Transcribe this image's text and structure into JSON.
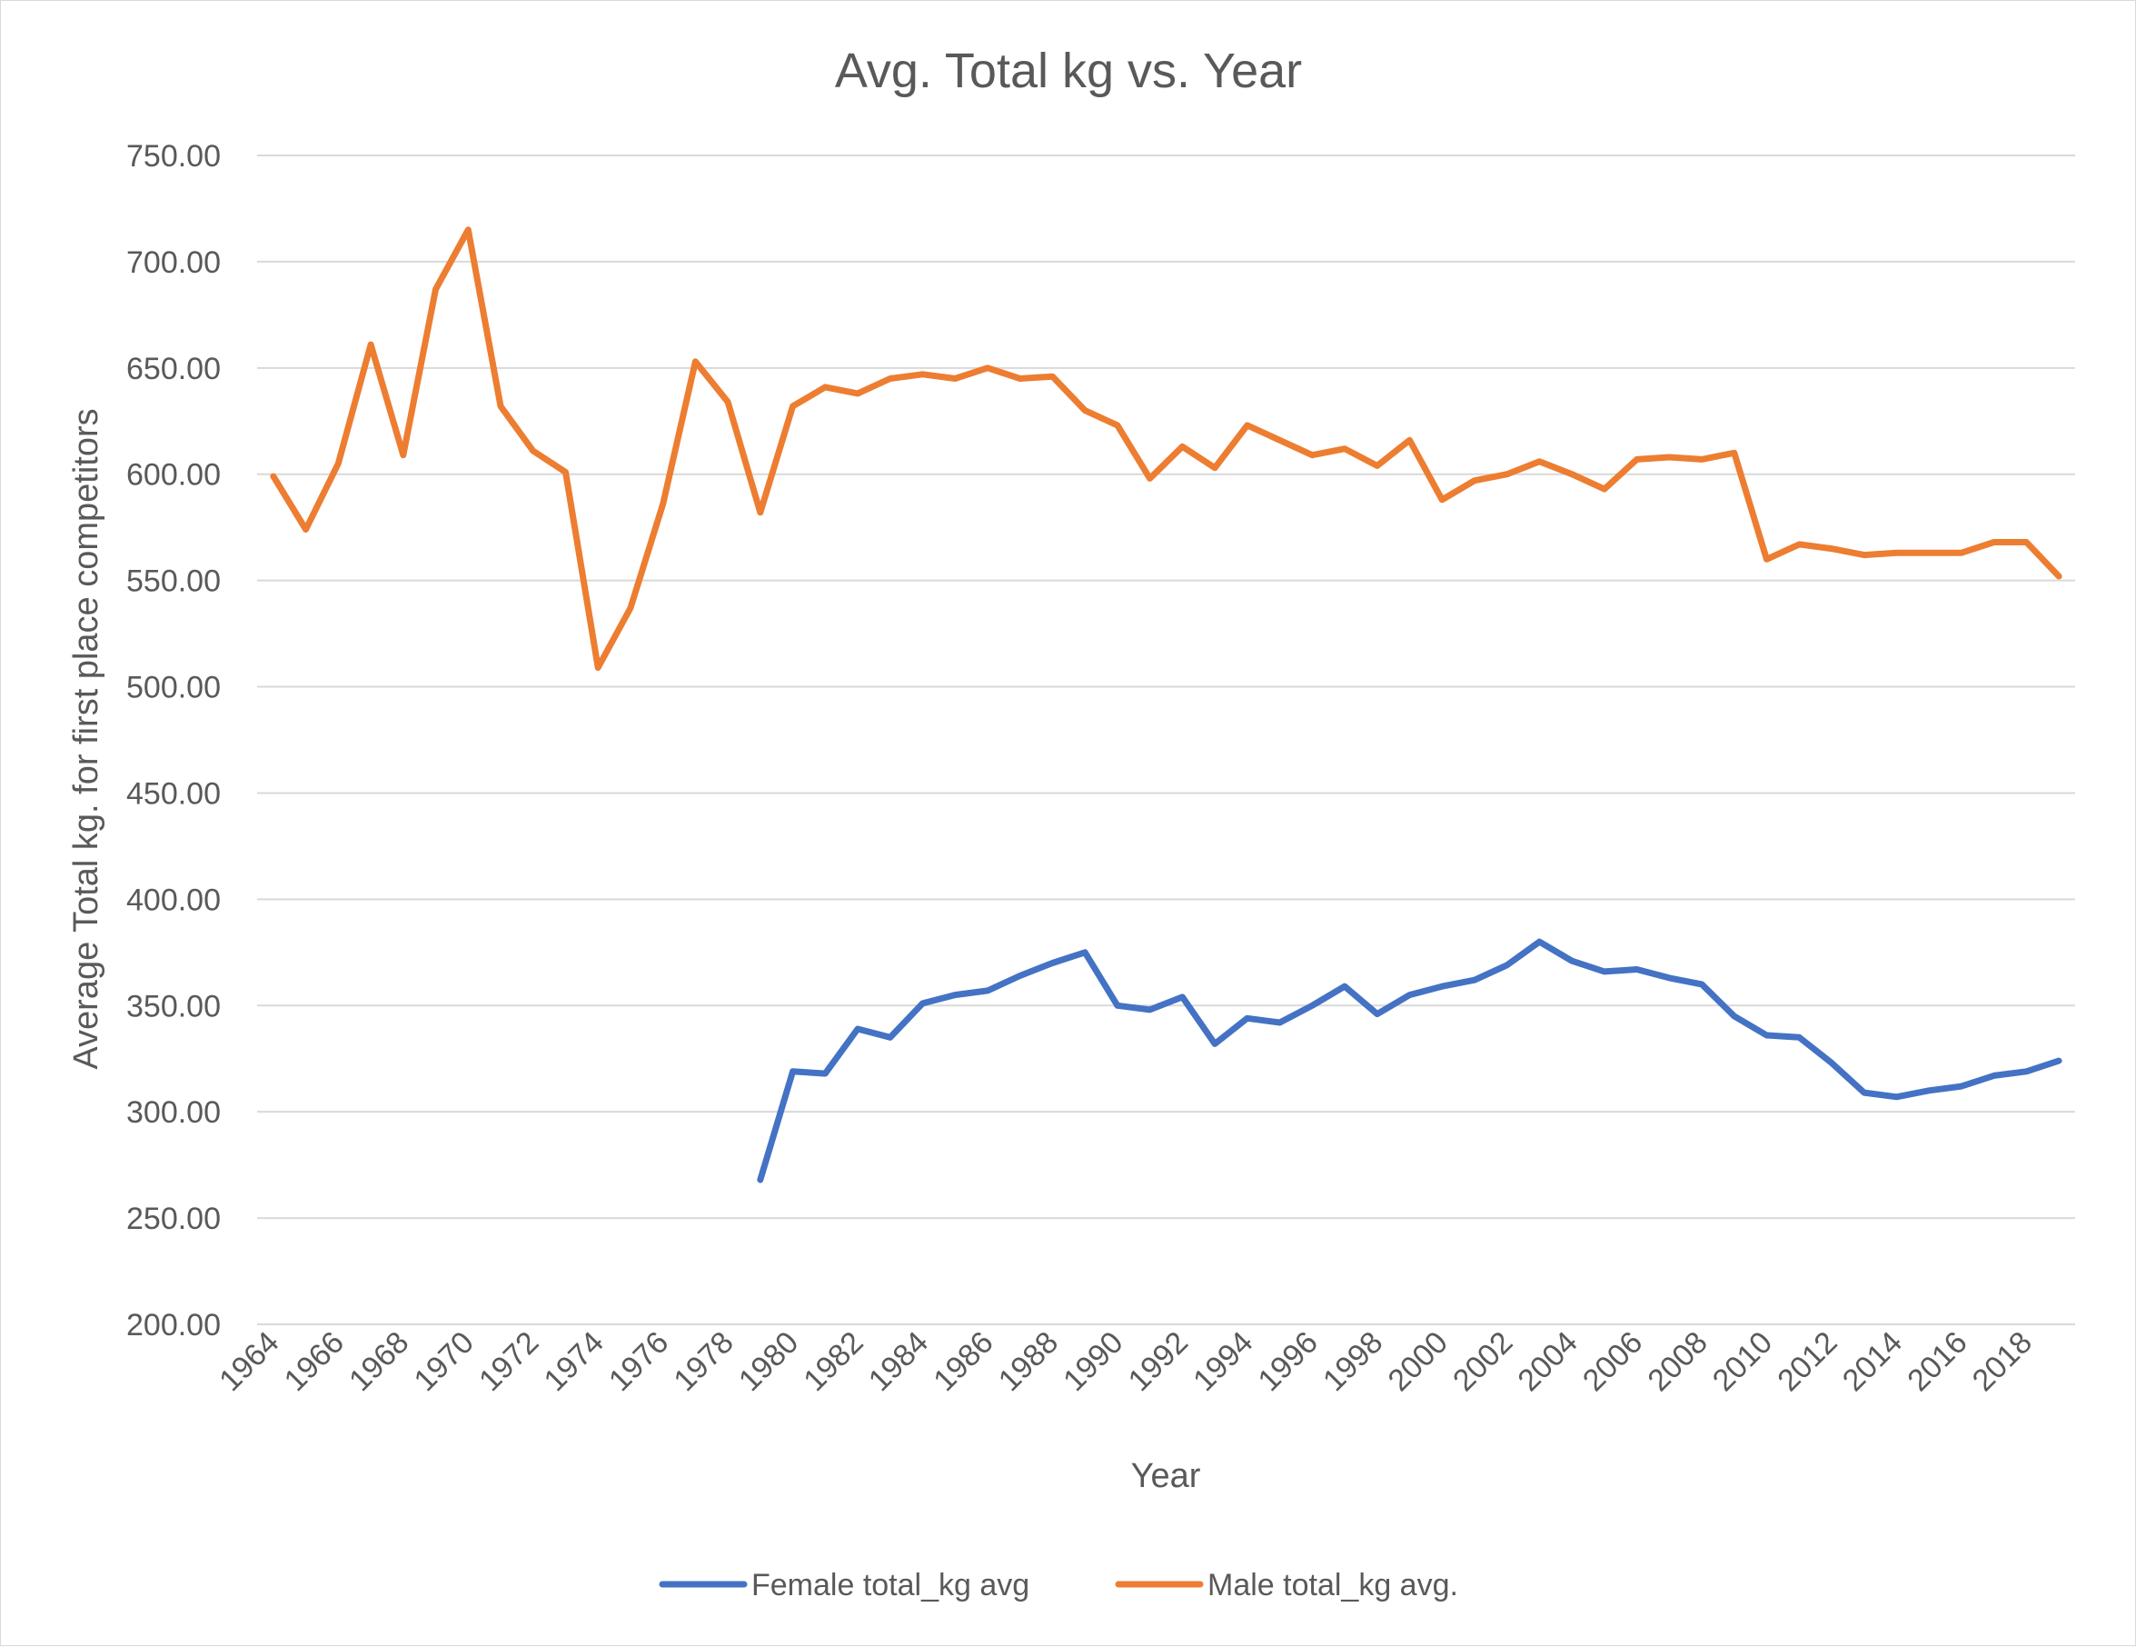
{
  "chart_data": {
    "type": "line",
    "title": "Avg. Total kg vs. Year",
    "xlabel": "Year",
    "ylabel": "Average Total kg. for first place competitors",
    "ylim": [
      200,
      750
    ],
    "ytick_step": 50,
    "ytick_decimals": 2,
    "x_range": [
      1964,
      2019
    ],
    "xtick_labels": [
      "1964",
      "1966",
      "1968",
      "1970",
      "1972",
      "1974",
      "1976",
      "1978",
      "1980",
      "1982",
      "1984",
      "1986",
      "1988",
      "1990",
      "1992",
      "1994",
      "1996",
      "1998",
      "2000",
      "2002",
      "2004",
      "2006",
      "2008",
      "2010",
      "2012",
      "2014",
      "2016",
      "2018"
    ],
    "grid": "horizontal",
    "legend_position": "bottom",
    "series": [
      {
        "name": "Female total_kg avg",
        "color": "#4472C4",
        "x": [
          1979,
          1980,
          1981,
          1982,
          1983,
          1984,
          1985,
          1986,
          1987,
          1988,
          1989,
          1990,
          1991,
          1992,
          1993,
          1994,
          1995,
          1996,
          1997,
          1998,
          1999,
          2000,
          2001,
          2002,
          2003,
          2004,
          2005,
          2006,
          2007,
          2008,
          2009,
          2010,
          2011,
          2012,
          2013,
          2014,
          2015,
          2016,
          2017,
          2018,
          2019
        ],
        "y": [
          268,
          319,
          318,
          339,
          335,
          351,
          355,
          357,
          364,
          370,
          375,
          350,
          348,
          354,
          332,
          344,
          342,
          350,
          359,
          346,
          355,
          359,
          362,
          369,
          380,
          371,
          366,
          367,
          363,
          360,
          345,
          336,
          335,
          323,
          309,
          307,
          310,
          312,
          317,
          319,
          324
        ]
      },
      {
        "name": "Male total_kg avg.",
        "color": "#ED7D31",
        "x": [
          1964,
          1965,
          1966,
          1967,
          1968,
          1969,
          1970,
          1971,
          1972,
          1973,
          1974,
          1975,
          1976,
          1977,
          1978,
          1979,
          1980,
          1981,
          1982,
          1983,
          1984,
          1985,
          1986,
          1987,
          1988,
          1989,
          1990,
          1991,
          1992,
          1993,
          1994,
          1995,
          1996,
          1997,
          1998,
          1999,
          2000,
          2001,
          2002,
          2003,
          2004,
          2005,
          2006,
          2007,
          2008,
          2009,
          2010,
          2011,
          2012,
          2013,
          2014,
          2015,
          2016,
          2017,
          2018,
          2019
        ],
        "y": [
          599,
          574,
          605,
          661,
          609,
          687,
          715,
          632,
          611,
          601,
          509,
          537,
          586,
          653,
          634,
          582,
          632,
          641,
          638,
          645,
          647,
          645,
          650,
          645,
          646,
          630,
          623,
          598,
          613,
          603,
          623,
          616,
          609,
          612,
          604,
          616,
          588,
          597,
          600,
          606,
          600,
          593,
          607,
          608,
          607,
          610,
          560,
          567,
          565,
          562,
          563,
          563,
          563,
          568,
          568,
          552
        ]
      }
    ]
  }
}
